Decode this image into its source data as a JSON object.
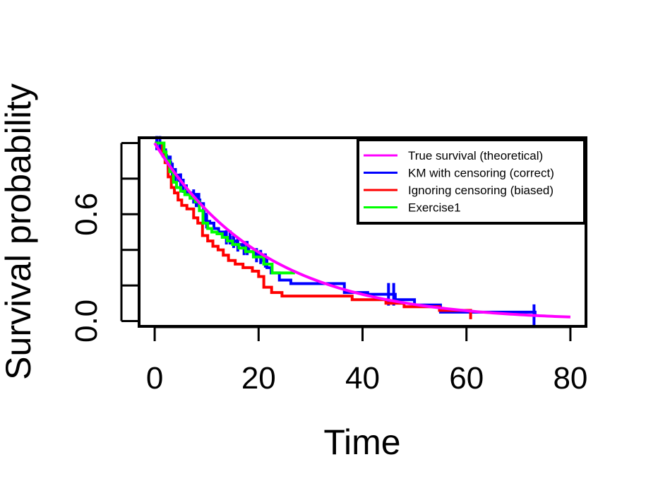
{
  "chart_data": {
    "type": "line",
    "xlabel": "Time",
    "ylabel": "Survival probability",
    "xlim": [
      -3,
      83
    ],
    "ylim": [
      -0.03,
      1.03
    ],
    "x_ticks": [
      0,
      20,
      40,
      60,
      80
    ],
    "x_tick_labels": [
      "0",
      "20",
      "40",
      "60",
      "80"
    ],
    "y_ticks": [
      0.0,
      0.2,
      0.4,
      0.6,
      0.8,
      1.0
    ],
    "y_tick_labels": [
      "0.0",
      "",
      "",
      "0.6",
      "",
      ""
    ],
    "grid": false,
    "legend_position": "top-right",
    "series": [
      {
        "name": "True survival (theoretical)",
        "color": "#ff00ff",
        "style": "curve",
        "rate": 0.0475,
        "x_range": [
          0,
          80
        ]
      },
      {
        "name": "KM with censoring (correct)",
        "color": "#0000ff",
        "style": "step",
        "x": [
          0,
          1.5,
          2.0,
          2.3,
          3.1,
          3.8,
          4.6,
          5.3,
          6.1,
          7.0,
          8.2,
          8.7,
          9.4,
          9.9,
          10.6,
          11.4,
          12.3,
          13.5,
          14.6,
          15.8,
          16.9,
          18.1,
          19.5,
          20.8,
          21.6,
          22.4,
          24.0,
          26.2,
          28.6,
          36.5,
          41.0,
          46.3,
          50.0,
          55.0,
          73.2
        ],
        "y": [
          1.0,
          0.96,
          0.93,
          0.89,
          0.85,
          0.82,
          0.79,
          0.76,
          0.72,
          0.7,
          0.68,
          0.66,
          0.6,
          0.56,
          0.55,
          0.52,
          0.5,
          0.47,
          0.45,
          0.43,
          0.41,
          0.39,
          0.37,
          0.34,
          0.3,
          0.27,
          0.23,
          0.21,
          0.21,
          0.16,
          0.15,
          0.12,
          0.09,
          0.05,
          0.03
        ],
        "censor_x": [
          0.4,
          1.0,
          1.6,
          2.1,
          2.6,
          3.0,
          3.4,
          4.0,
          5.0,
          5.5,
          7.5,
          8.0,
          8.5,
          9.5,
          10.0,
          13.8,
          14.5,
          15.2,
          16.0,
          17.2,
          17.8,
          19.6,
          20.4,
          21.3,
          45.0,
          46.0,
          73.0
        ],
        "censor_y": [
          1.0,
          1.0,
          0.96,
          0.93,
          0.89,
          0.89,
          0.85,
          0.82,
          0.79,
          0.76,
          0.7,
          0.68,
          0.68,
          0.6,
          0.56,
          0.47,
          0.47,
          0.45,
          0.43,
          0.41,
          0.41,
          0.37,
          0.36,
          0.34,
          0.15,
          0.15,
          0.03
        ]
      },
      {
        "name": "Ignoring censoring (biased)",
        "color": "#ff0000",
        "style": "step",
        "x": [
          0,
          1.5,
          2.0,
          2.6,
          3.2,
          3.8,
          4.5,
          5.2,
          6.2,
          7.5,
          8.3,
          9.2,
          10.2,
          11.2,
          12.2,
          13.2,
          14.2,
          15.5,
          17.0,
          18.8,
          20.0,
          21.0,
          22.5,
          24.5,
          36.5,
          38.0,
          44.5,
          48.0,
          54.8,
          60.8
        ],
        "y": [
          1.0,
          0.95,
          0.89,
          0.81,
          0.75,
          0.72,
          0.68,
          0.65,
          0.63,
          0.58,
          0.55,
          0.48,
          0.45,
          0.42,
          0.4,
          0.37,
          0.34,
          0.32,
          0.3,
          0.28,
          0.25,
          0.19,
          0.16,
          0.14,
          0.14,
          0.12,
          0.1,
          0.08,
          0.06,
          0.01
        ]
      },
      {
        "name": "Exercise1",
        "color": "#00ff00",
        "style": "step",
        "x": [
          0,
          1.8,
          2.2,
          2.9,
          3.6,
          4.2,
          5.0,
          5.8,
          6.8,
          7.8,
          8.6,
          9.3,
          10.2,
          11.0,
          12.0,
          13.0,
          14.0,
          15.0,
          16.2,
          17.5,
          19.0,
          21.0,
          22.6,
          27.0
        ],
        "y": [
          1.0,
          0.95,
          0.9,
          0.84,
          0.78,
          0.75,
          0.73,
          0.71,
          0.69,
          0.67,
          0.62,
          0.55,
          0.52,
          0.5,
          0.49,
          0.47,
          0.45,
          0.43,
          0.41,
          0.39,
          0.36,
          0.32,
          0.27,
          0.27
        ]
      }
    ]
  }
}
